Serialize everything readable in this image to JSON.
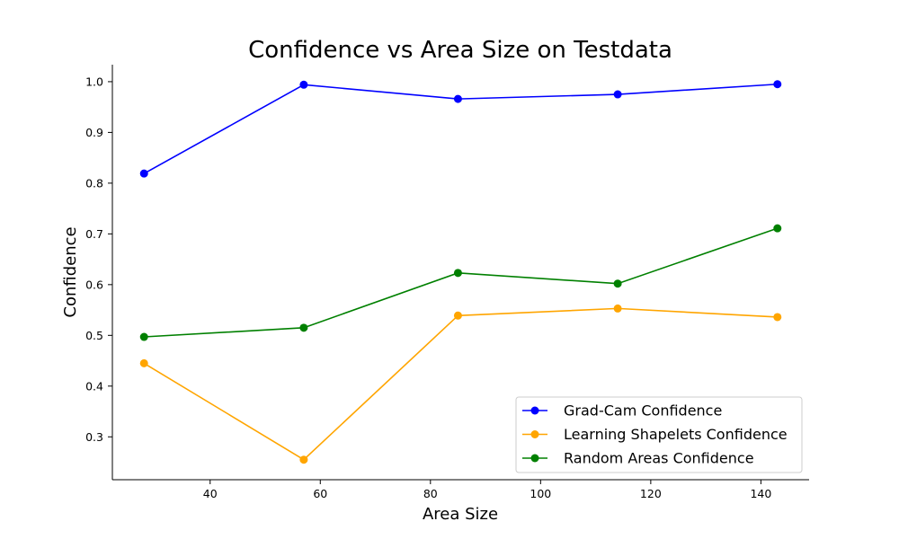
{
  "chart_data": {
    "type": "line",
    "title": "Confidence vs Area Size on Testdata",
    "xlabel": "Area Size",
    "ylabel": "Confidence",
    "x": [
      28,
      57,
      85,
      114,
      143
    ],
    "xlim": [
      22.25,
      148.75
    ],
    "ylim": [
      0.2155,
      1.0335
    ],
    "xticks": [
      40,
      60,
      80,
      100,
      120,
      140
    ],
    "yticks": [
      0.3,
      0.4,
      0.5,
      0.6,
      0.7,
      0.8,
      0.9,
      1.0
    ],
    "grid": false,
    "legend_position": "lower-right",
    "series": [
      {
        "name": "Grad-Cam Confidence",
        "color": "#0000ff",
        "values": [
          0.819,
          0.994,
          0.966,
          0.975,
          0.995
        ]
      },
      {
        "name": "Learning Shapelets Confidence",
        "color": "#ffa500",
        "values": [
          0.445,
          0.255,
          0.539,
          0.553,
          0.536
        ]
      },
      {
        "name": "Random Areas Confidence",
        "color": "#008000",
        "values": [
          0.497,
          0.515,
          0.623,
          0.602,
          0.711
        ]
      }
    ]
  }
}
